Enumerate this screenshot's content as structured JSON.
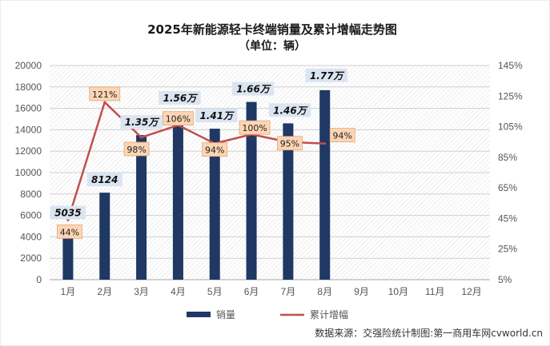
{
  "chart_data": {
    "type": "bar",
    "title": "2025年新能源轻卡终端销量及累计增幅走势图",
    "subtitle": "（单位：辆）",
    "categories": [
      "1月",
      "2月",
      "3月",
      "4月",
      "5月",
      "6月",
      "7月",
      "8月",
      "9月",
      "10月",
      "11月",
      "12月"
    ],
    "series": [
      {
        "name": "销量",
        "type": "bar",
        "axis": "left",
        "color": "#1f3864",
        "values": [
          5035,
          8124,
          13500,
          15600,
          14100,
          16600,
          14600,
          17700,
          null,
          null,
          null,
          null
        ],
        "labels": [
          "5035",
          "8124",
          "1.35万",
          "1.56万",
          "1.41万",
          "1.66万",
          "1.46万",
          "1.77万",
          "",
          "",
          "",
          ""
        ]
      },
      {
        "name": "累计增幅",
        "type": "line",
        "axis": "right",
        "color": "#c0504d",
        "values": [
          44,
          121,
          98,
          106,
          94,
          100,
          95,
          94,
          null,
          null,
          null,
          null
        ],
        "labels": [
          "44%",
          "121%",
          "98%",
          "106%",
          "94%",
          "100%",
          "95%",
          "94%",
          "",
          "",
          "",
          ""
        ]
      }
    ],
    "y_left": {
      "min": 0,
      "max": 20000,
      "step": 2000,
      "ticks": [
        "0",
        "2000",
        "4000",
        "6000",
        "8000",
        "10000",
        "12000",
        "14000",
        "16000",
        "18000",
        "20000"
      ]
    },
    "y_right": {
      "min": 5,
      "max": 145,
      "step": 20,
      "ticks": [
        "5%",
        "25%",
        "45%",
        "65%",
        "85%",
        "105%",
        "125%",
        "145%"
      ]
    },
    "legend": {
      "position": "bottom"
    },
    "grid": true,
    "source": "数据来源：交强险统计制图:第一商用车网cvworld.cn"
  }
}
